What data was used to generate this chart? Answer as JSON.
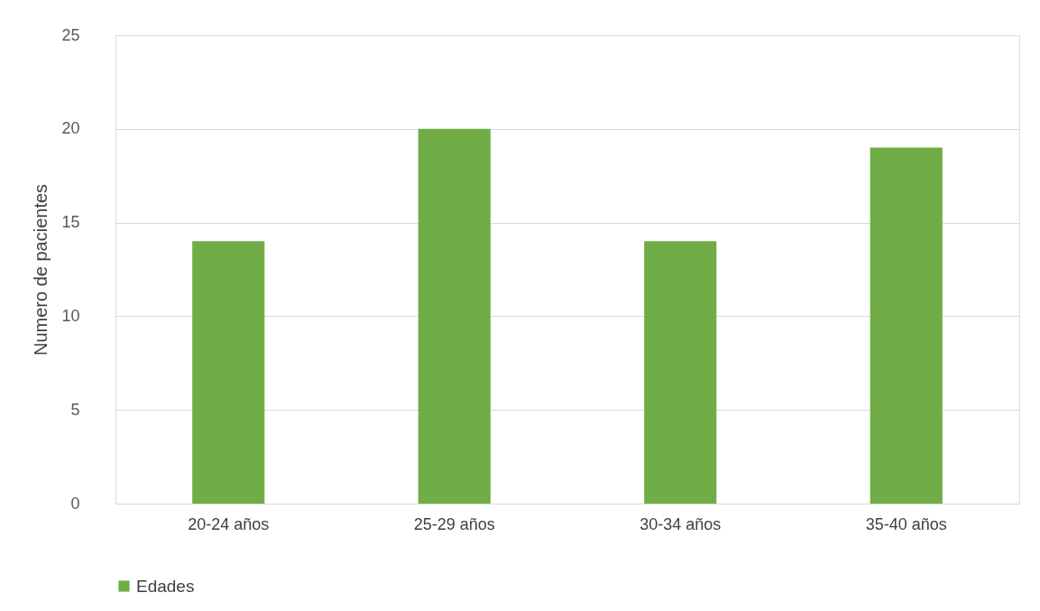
{
  "chart_data": {
    "type": "bar",
    "ylabel": "Numero de pacientes",
    "categories": [
      "20-24 años",
      "25-29 años",
      "30-34 años",
      "35-40 años"
    ],
    "series": [
      {
        "name": "Edades",
        "color": "#70ad47",
        "values": [
          14,
          20,
          14,
          19
        ]
      }
    ],
    "ylim": [
      0,
      25
    ],
    "yticks": [
      0,
      5,
      10,
      15,
      20,
      25
    ],
    "grid": "y",
    "legend": "bottom"
  }
}
